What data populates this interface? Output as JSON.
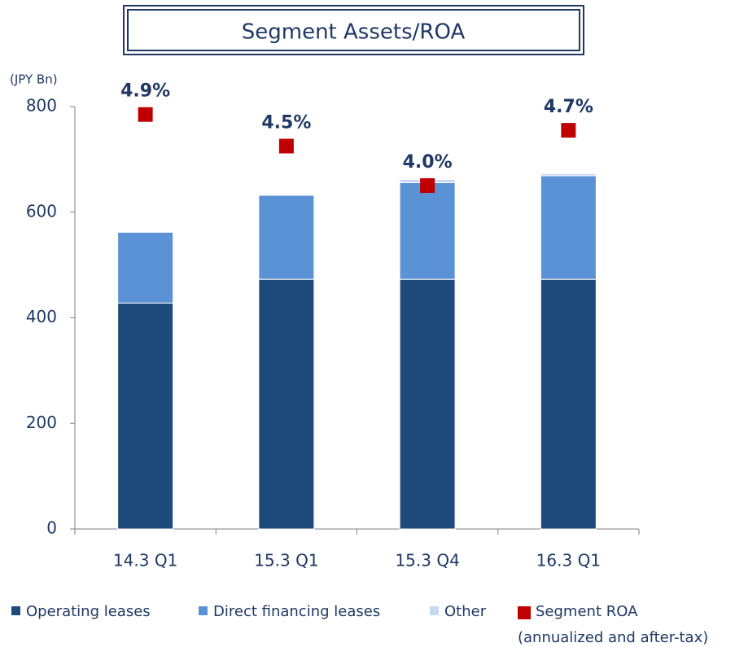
{
  "chart_data": {
    "type": "bar",
    "stacked": true,
    "title": "Segment Assets/ROA",
    "y_unit_label": "(JPY Bn)",
    "categories": [
      "14.3 Q1",
      "15.3 Q1",
      "15.3 Q4",
      "16.3 Q1"
    ],
    "series": [
      {
        "name": "Operating leases",
        "color": "#1f4a7c",
        "values": [
          428,
          473,
          473,
          473
        ]
      },
      {
        "name": "Direct financing leases",
        "color": "#5b92d5",
        "values": [
          134,
          159,
          183,
          196
        ]
      },
      {
        "name": "Other",
        "color": "#c6d9f1",
        "values": [
          0,
          0,
          6,
          4
        ]
      },
      {
        "name": "Segment ROA",
        "color": "#c00000",
        "axis": "y2",
        "values": [
          4.9,
          4.5,
          4.0,
          4.7
        ],
        "value_labels": [
          "4.9%",
          "4.5%",
          "4.0%",
          "4.7%"
        ]
      }
    ],
    "roa_note": "(annualized and after-tax)",
    "ylim": [
      0,
      800
    ],
    "yticks": [
      0,
      200,
      400,
      600,
      800
    ],
    "y2lim": [
      -0.35,
      5.0
    ],
    "grid": false
  }
}
